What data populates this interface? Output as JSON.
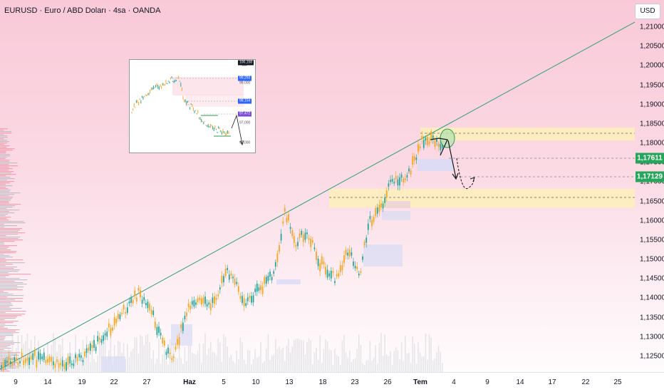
{
  "header": {
    "title": "EURUSD · Euro / ABD Doları · 4sa · OANDA",
    "currency": "USD"
  },
  "price_axis": {
    "ticks": [
      "1,21000",
      "1,20500",
      "1,20000",
      "1,19500",
      "1,19000",
      "1,18500",
      "1,18000",
      "1,17500",
      "1,17000",
      "1,16500",
      "1,16000",
      "1,15500",
      "1,15000",
      "1,14500",
      "1,14000",
      "1,13500",
      "1,13000",
      "1,12500"
    ],
    "tags": [
      {
        "label": "1,17611",
        "price": 1.17611,
        "color": "#26a65b"
      },
      {
        "label": "1,17129",
        "price": 1.17129,
        "color": "#26a65b"
      }
    ]
  },
  "time_axis": {
    "ticks": [
      {
        "label": "9",
        "bold": false
      },
      {
        "label": "14",
        "bold": false
      },
      {
        "label": "19",
        "bold": false
      },
      {
        "label": "22",
        "bold": false
      },
      {
        "label": "27",
        "bold": false
      },
      {
        "label": "Haz",
        "bold": true
      },
      {
        "label": "5",
        "bold": false
      },
      {
        "label": "10",
        "bold": false
      },
      {
        "label": "13",
        "bold": false
      },
      {
        "label": "18",
        "bold": false
      },
      {
        "label": "23",
        "bold": false
      },
      {
        "label": "26",
        "bold": false
      },
      {
        "label": "Tem",
        "bold": true
      },
      {
        "label": "4",
        "bold": false
      },
      {
        "label": "9",
        "bold": false
      },
      {
        "label": "14",
        "bold": false
      },
      {
        "label": "17",
        "bold": false
      },
      {
        "label": "22",
        "bold": false
      },
      {
        "label": "25",
        "bold": false
      }
    ]
  },
  "inset": {
    "labels": [
      {
        "text": "100,158",
        "bg": "#131722",
        "fg": "#ffffff"
      },
      {
        "text": "99,293",
        "bg": "#2962ff",
        "fg": "#ffffff"
      },
      {
        "text": "99,000",
        "bg": "transparent",
        "fg": "#555555"
      },
      {
        "text": "98,154",
        "bg": "#2962ff",
        "fg": "#ffffff"
      },
      {
        "text": "97,472",
        "bg": "#7b4bd6",
        "fg": "#ffffff"
      },
      {
        "text": "97,000",
        "bg": "transparent",
        "fg": "#555555"
      },
      {
        "text": "96,000",
        "bg": "transparent",
        "fg": "#555555"
      }
    ]
  },
  "colors": {
    "up": "#26a69a",
    "down": "#f5a623",
    "trendline": "#2e9e7e",
    "zone": "#fdf0b8",
    "tag": "#26a65b"
  }
}
